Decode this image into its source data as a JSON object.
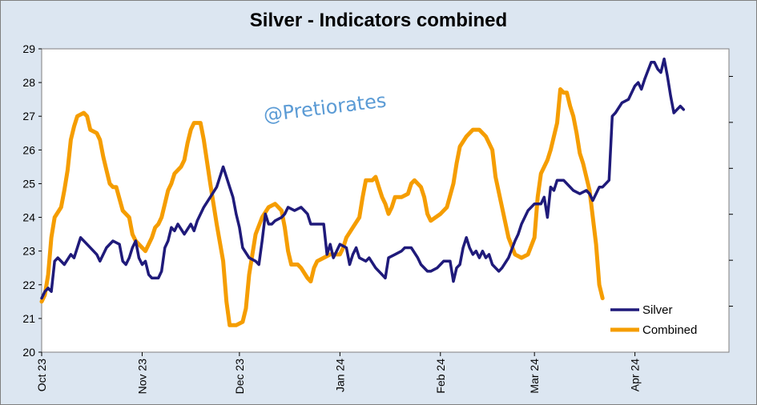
{
  "chart_data": {
    "type": "line",
    "title": "Silver - Indicators combined",
    "watermark": "@Pretiorates",
    "ylim": [
      20,
      29
    ],
    "yticks": [
      "20",
      "21",
      "22",
      "23",
      "24",
      "25",
      "26",
      "27",
      "28",
      "29"
    ],
    "xlim": [
      "2023-10-01",
      "2024-04-30"
    ],
    "xticks": [
      {
        "date": "2023-10-01",
        "label": "Oct 23"
      },
      {
        "date": "2023-11-01",
        "label": "Nov 23"
      },
      {
        "date": "2023-12-01",
        "label": "Dec 23"
      },
      {
        "date": "2024-01-01",
        "label": "Jan 24"
      },
      {
        "date": "2024-02-01",
        "label": "Feb 24"
      },
      {
        "date": "2024-03-01",
        "label": "Mar 24"
      },
      {
        "date": "2024-04-01",
        "label": "Apr 24"
      }
    ],
    "legend_position": "bottom-right",
    "grid": false,
    "series": [
      {
        "name": "Silver",
        "color": "#1f1a7a",
        "points": [
          [
            "2023-10-01",
            21.6
          ],
          [
            "2023-10-02",
            21.8
          ],
          [
            "2023-10-03",
            21.9
          ],
          [
            "2023-10-04",
            21.8
          ],
          [
            "2023-10-05",
            22.7
          ],
          [
            "2023-10-06",
            22.8
          ],
          [
            "2023-10-08",
            22.6
          ],
          [
            "2023-10-10",
            22.9
          ],
          [
            "2023-10-11",
            22.8
          ],
          [
            "2023-10-13",
            23.4
          ],
          [
            "2023-10-15",
            23.2
          ],
          [
            "2023-10-18",
            22.9
          ],
          [
            "2023-10-19",
            22.7
          ],
          [
            "2023-10-21",
            23.1
          ],
          [
            "2023-10-23",
            23.3
          ],
          [
            "2023-10-25",
            23.2
          ],
          [
            "2023-10-26",
            22.7
          ],
          [
            "2023-10-27",
            22.6
          ],
          [
            "2023-10-28",
            22.8
          ],
          [
            "2023-10-29",
            23.1
          ],
          [
            "2023-10-30",
            23.3
          ],
          [
            "2023-10-31",
            22.8
          ],
          [
            "2023-11-01",
            22.6
          ],
          [
            "2023-11-02",
            22.7
          ],
          [
            "2023-11-03",
            22.3
          ],
          [
            "2023-11-04",
            22.2
          ],
          [
            "2023-11-06",
            22.2
          ],
          [
            "2023-11-07",
            22.4
          ],
          [
            "2023-11-08",
            23.1
          ],
          [
            "2023-11-09",
            23.3
          ],
          [
            "2023-11-10",
            23.7
          ],
          [
            "2023-11-11",
            23.6
          ],
          [
            "2023-11-12",
            23.8
          ],
          [
            "2023-11-14",
            23.5
          ],
          [
            "2023-11-16",
            23.8
          ],
          [
            "2023-11-17",
            23.6
          ],
          [
            "2023-11-18",
            23.9
          ],
          [
            "2023-11-20",
            24.3
          ],
          [
            "2023-11-22",
            24.6
          ],
          [
            "2023-11-24",
            24.9
          ],
          [
            "2023-11-26",
            25.5
          ],
          [
            "2023-11-28",
            24.9
          ],
          [
            "2023-11-29",
            24.6
          ],
          [
            "2023-11-30",
            24.1
          ],
          [
            "2023-12-01",
            23.7
          ],
          [
            "2023-12-02",
            23.1
          ],
          [
            "2023-12-04",
            22.8
          ],
          [
            "2023-12-06",
            22.7
          ],
          [
            "2023-12-07",
            22.6
          ],
          [
            "2023-12-08",
            23.3
          ],
          [
            "2023-12-09",
            24.1
          ],
          [
            "2023-12-10",
            23.8
          ],
          [
            "2023-12-11",
            23.8
          ],
          [
            "2023-12-12",
            23.9
          ],
          [
            "2023-12-14",
            24.0
          ],
          [
            "2023-12-15",
            24.1
          ],
          [
            "2023-12-16",
            24.3
          ],
          [
            "2023-12-18",
            24.2
          ],
          [
            "2023-12-20",
            24.3
          ],
          [
            "2023-12-22",
            24.1
          ],
          [
            "2023-12-23",
            23.8
          ],
          [
            "2023-12-25",
            23.8
          ],
          [
            "2023-12-27",
            23.8
          ],
          [
            "2023-12-28",
            22.9
          ],
          [
            "2023-12-29",
            23.2
          ],
          [
            "2023-12-30",
            22.8
          ],
          [
            "2024-01-01",
            23.2
          ],
          [
            "2024-01-03",
            23.1
          ],
          [
            "2024-01-04",
            22.6
          ],
          [
            "2024-01-05",
            22.9
          ],
          [
            "2024-01-06",
            23.1
          ],
          [
            "2024-01-07",
            22.8
          ],
          [
            "2024-01-09",
            22.7
          ],
          [
            "2024-01-10",
            22.8
          ],
          [
            "2024-01-12",
            22.5
          ],
          [
            "2024-01-14",
            22.3
          ],
          [
            "2024-01-15",
            22.2
          ],
          [
            "2024-01-16",
            22.8
          ],
          [
            "2024-01-18",
            22.9
          ],
          [
            "2024-01-20",
            23.0
          ],
          [
            "2024-01-21",
            23.1
          ],
          [
            "2024-01-23",
            23.1
          ],
          [
            "2024-01-25",
            22.8
          ],
          [
            "2024-01-26",
            22.6
          ],
          [
            "2024-01-28",
            22.4
          ],
          [
            "2024-01-29",
            22.4
          ],
          [
            "2024-01-31",
            22.5
          ],
          [
            "2024-02-01",
            22.6
          ],
          [
            "2024-02-02",
            22.7
          ],
          [
            "2024-02-04",
            22.7
          ],
          [
            "2024-02-05",
            22.1
          ],
          [
            "2024-02-06",
            22.5
          ],
          [
            "2024-02-07",
            22.6
          ],
          [
            "2024-02-08",
            23.1
          ],
          [
            "2024-02-09",
            23.4
          ],
          [
            "2024-02-10",
            23.1
          ],
          [
            "2024-02-11",
            22.9
          ],
          [
            "2024-02-12",
            23.0
          ],
          [
            "2024-02-13",
            22.8
          ],
          [
            "2024-02-14",
            23.0
          ],
          [
            "2024-02-15",
            22.8
          ],
          [
            "2024-02-16",
            22.9
          ],
          [
            "2024-02-17",
            22.6
          ],
          [
            "2024-02-18",
            22.5
          ],
          [
            "2024-02-19",
            22.4
          ],
          [
            "2024-02-20",
            22.5
          ],
          [
            "2024-02-22",
            22.8
          ],
          [
            "2024-02-24",
            23.3
          ],
          [
            "2024-02-25",
            23.5
          ],
          [
            "2024-02-26",
            23.8
          ],
          [
            "2024-02-28",
            24.2
          ],
          [
            "2024-02-29",
            24.3
          ],
          [
            "2024-03-01",
            24.4
          ],
          [
            "2024-03-03",
            24.4
          ],
          [
            "2024-03-04",
            24.6
          ],
          [
            "2024-03-05",
            24.0
          ],
          [
            "2024-03-06",
            24.9
          ],
          [
            "2024-03-07",
            24.8
          ],
          [
            "2024-03-08",
            25.1
          ],
          [
            "2024-03-10",
            25.1
          ],
          [
            "2024-03-12",
            24.9
          ],
          [
            "2024-03-13",
            24.8
          ],
          [
            "2024-03-15",
            24.7
          ],
          [
            "2024-03-17",
            24.8
          ],
          [
            "2024-03-18",
            24.7
          ],
          [
            "2024-03-19",
            24.5
          ],
          [
            "2024-03-21",
            24.9
          ],
          [
            "2024-03-22",
            24.9
          ],
          [
            "2024-03-24",
            25.1
          ],
          [
            "2024-03-25",
            27.0
          ],
          [
            "2024-03-26",
            27.1
          ],
          [
            "2024-03-28",
            27.4
          ],
          [
            "2024-03-30",
            27.5
          ],
          [
            "2024-04-01",
            27.9
          ],
          [
            "2024-04-02",
            28.0
          ],
          [
            "2024-04-03",
            27.8
          ],
          [
            "2024-04-04",
            28.1
          ],
          [
            "2024-04-06",
            28.6
          ],
          [
            "2024-04-07",
            28.6
          ],
          [
            "2024-04-08",
            28.4
          ],
          [
            "2024-04-09",
            28.3
          ],
          [
            "2024-04-10",
            28.7
          ],
          [
            "2024-04-11",
            28.2
          ],
          [
            "2024-04-12",
            27.6
          ],
          [
            "2024-04-13",
            27.1
          ],
          [
            "2024-04-14",
            27.2
          ],
          [
            "2024-04-15",
            27.3
          ],
          [
            "2024-04-16",
            27.2
          ]
        ]
      },
      {
        "name": "Combined",
        "color": "#f59d00",
        "points": [
          [
            "2023-10-01",
            21.5
          ],
          [
            "2023-10-02",
            21.7
          ],
          [
            "2023-10-03",
            22.3
          ],
          [
            "2023-10-04",
            23.4
          ],
          [
            "2023-10-05",
            24.0
          ],
          [
            "2023-10-07",
            24.3
          ],
          [
            "2023-10-08",
            24.8
          ],
          [
            "2023-10-09",
            25.4
          ],
          [
            "2023-10-10",
            26.3
          ],
          [
            "2023-10-11",
            26.7
          ],
          [
            "2023-10-12",
            27.0
          ],
          [
            "2023-10-14",
            27.1
          ],
          [
            "2023-10-15",
            27.0
          ],
          [
            "2023-10-16",
            26.6
          ],
          [
            "2023-10-18",
            26.5
          ],
          [
            "2023-10-19",
            26.3
          ],
          [
            "2023-10-20",
            25.8
          ],
          [
            "2023-10-21",
            25.4
          ],
          [
            "2023-10-22",
            25.0
          ],
          [
            "2023-10-23",
            24.9
          ],
          [
            "2023-10-24",
            24.9
          ],
          [
            "2023-10-26",
            24.2
          ],
          [
            "2023-10-28",
            24.0
          ],
          [
            "2023-10-29",
            23.5
          ],
          [
            "2023-10-30",
            23.3
          ],
          [
            "2023-11-01",
            23.1
          ],
          [
            "2023-11-02",
            23.0
          ],
          [
            "2023-11-03",
            23.2
          ],
          [
            "2023-11-04",
            23.4
          ],
          [
            "2023-11-05",
            23.7
          ],
          [
            "2023-11-06",
            23.8
          ],
          [
            "2023-11-07",
            24.0
          ],
          [
            "2023-11-08",
            24.4
          ],
          [
            "2023-11-09",
            24.8
          ],
          [
            "2023-11-10",
            25.0
          ],
          [
            "2023-11-11",
            25.3
          ],
          [
            "2023-11-13",
            25.5
          ],
          [
            "2023-11-14",
            25.7
          ],
          [
            "2023-11-15",
            26.2
          ],
          [
            "2023-11-16",
            26.6
          ],
          [
            "2023-11-17",
            26.8
          ],
          [
            "2023-11-19",
            26.8
          ],
          [
            "2023-11-20",
            26.3
          ],
          [
            "2023-11-22",
            25.0
          ],
          [
            "2023-11-23",
            24.4
          ],
          [
            "2023-11-24",
            23.8
          ],
          [
            "2023-11-26",
            22.7
          ],
          [
            "2023-11-27",
            21.5
          ],
          [
            "2023-11-28",
            20.8
          ],
          [
            "2023-11-30",
            20.8
          ],
          [
            "2023-12-02",
            20.9
          ],
          [
            "2023-12-03",
            21.3
          ],
          [
            "2023-12-04",
            22.3
          ],
          [
            "2023-12-06",
            23.5
          ],
          [
            "2023-12-08",
            24.0
          ],
          [
            "2023-12-10",
            24.3
          ],
          [
            "2023-12-12",
            24.4
          ],
          [
            "2023-12-14",
            24.2
          ],
          [
            "2023-12-15",
            23.7
          ],
          [
            "2023-12-16",
            23.0
          ],
          [
            "2023-12-17",
            22.6
          ],
          [
            "2023-12-19",
            22.6
          ],
          [
            "2023-12-20",
            22.5
          ],
          [
            "2023-12-22",
            22.2
          ],
          [
            "2023-12-23",
            22.1
          ],
          [
            "2023-12-24",
            22.5
          ],
          [
            "2023-12-25",
            22.7
          ],
          [
            "2023-12-27",
            22.8
          ],
          [
            "2023-12-29",
            22.9
          ],
          [
            "2024-01-01",
            22.9
          ],
          [
            "2024-01-02",
            23.1
          ],
          [
            "2024-01-03",
            23.4
          ],
          [
            "2024-01-05",
            23.7
          ],
          [
            "2024-01-07",
            24.0
          ],
          [
            "2024-01-08",
            24.6
          ],
          [
            "2024-01-09",
            25.1
          ],
          [
            "2024-01-11",
            25.1
          ],
          [
            "2024-01-12",
            25.2
          ],
          [
            "2024-01-13",
            24.9
          ],
          [
            "2024-01-14",
            24.6
          ],
          [
            "2024-01-15",
            24.4
          ],
          [
            "2024-01-16",
            24.1
          ],
          [
            "2024-01-17",
            24.3
          ],
          [
            "2024-01-18",
            24.6
          ],
          [
            "2024-01-20",
            24.6
          ],
          [
            "2024-01-22",
            24.7
          ],
          [
            "2024-01-23",
            25.0
          ],
          [
            "2024-01-24",
            25.1
          ],
          [
            "2024-01-26",
            24.9
          ],
          [
            "2024-01-27",
            24.6
          ],
          [
            "2024-01-28",
            24.1
          ],
          [
            "2024-01-29",
            23.9
          ],
          [
            "2024-02-01",
            24.1
          ],
          [
            "2024-02-03",
            24.3
          ],
          [
            "2024-02-05",
            25.0
          ],
          [
            "2024-02-06",
            25.6
          ],
          [
            "2024-02-07",
            26.1
          ],
          [
            "2024-02-09",
            26.4
          ],
          [
            "2024-02-11",
            26.6
          ],
          [
            "2024-02-13",
            26.6
          ],
          [
            "2024-02-15",
            26.4
          ],
          [
            "2024-02-17",
            26.0
          ],
          [
            "2024-02-18",
            25.2
          ],
          [
            "2024-02-20",
            24.3
          ],
          [
            "2024-02-22",
            23.4
          ],
          [
            "2024-02-24",
            22.9
          ],
          [
            "2024-02-26",
            22.8
          ],
          [
            "2024-02-28",
            22.9
          ],
          [
            "2024-03-01",
            23.4
          ],
          [
            "2024-03-02",
            24.6
          ],
          [
            "2024-03-03",
            25.3
          ],
          [
            "2024-03-05",
            25.7
          ],
          [
            "2024-03-06",
            26.0
          ],
          [
            "2024-03-08",
            26.8
          ],
          [
            "2024-03-09",
            27.8
          ],
          [
            "2024-03-10",
            27.7
          ],
          [
            "2024-03-11",
            27.7
          ],
          [
            "2024-03-12",
            27.3
          ],
          [
            "2024-03-13",
            27.0
          ],
          [
            "2024-03-14",
            26.5
          ],
          [
            "2024-03-15",
            25.9
          ],
          [
            "2024-03-16",
            25.6
          ],
          [
            "2024-03-18",
            24.8
          ],
          [
            "2024-03-20",
            23.2
          ],
          [
            "2024-03-21",
            22.0
          ],
          [
            "2024-03-22",
            21.6
          ]
        ]
      }
    ]
  }
}
